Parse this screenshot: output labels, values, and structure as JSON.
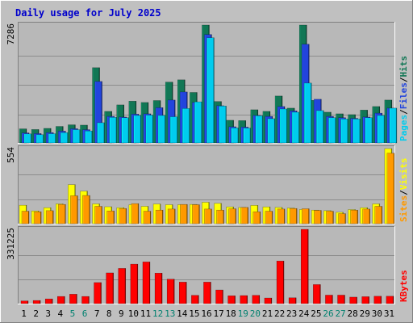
{
  "chart_data": {
    "type": "bar",
    "title": "Daily usage for July 2025",
    "categories": [
      "1",
      "2",
      "3",
      "4",
      "5",
      "6",
      "7",
      "8",
      "9",
      "10",
      "11",
      "12",
      "13",
      "14",
      "15",
      "16",
      "17",
      "18",
      "19",
      "20",
      "21",
      "22",
      "23",
      "24",
      "25",
      "26",
      "27",
      "28",
      "29",
      "30",
      "31"
    ],
    "weekend_days": [
      "5",
      "6",
      "12",
      "13",
      "19",
      "20",
      "26",
      "27"
    ],
    "panels": [
      {
        "name": "hits-files-pages",
        "ymax_label": "7286",
        "ylim": [
          0,
          7286
        ],
        "side_labels": [
          {
            "text": "Pages",
            "color": "#00ccee"
          },
          {
            "text": "/",
            "color": "#000000"
          },
          {
            "text": "Files",
            "color": "#2244dd"
          },
          {
            "text": "/",
            "color": "#000000"
          },
          {
            "text": "Hits",
            "color": "#117755"
          }
        ],
        "series": [
          {
            "name": "Hits",
            "color": "#117755",
            "values": [
              870,
              830,
              900,
              1020,
              1120,
              1100,
              4650,
              1950,
              2350,
              2580,
              2500,
              2620,
              3760,
              3900,
              3120,
              7286,
              2560,
              1400,
              1380,
              2050,
              1950,
              2900,
              2150,
              7286,
              2630,
              1900,
              1800,
              1750,
              2030,
              2250,
              2650
            ]
          },
          {
            "name": "Files",
            "color": "#2244dd",
            "values": [
              620,
              580,
              640,
              730,
              880,
              820,
              3800,
              1640,
              1600,
              1780,
              1800,
              2180,
              2650,
              3150,
              2500,
              6700,
              2300,
              1000,
              980,
              1700,
              1640,
              2250,
              1980,
              6100,
              2700,
              1640,
              1560,
              1520,
              1600,
              1840,
              2150
            ]
          },
          {
            "name": "Pages",
            "color": "#00ccee",
            "values": [
              560,
              510,
              570,
              640,
              820,
              740,
              1250,
              1580,
              1560,
              1700,
              1720,
              1700,
              1620,
              2130,
              2540,
              6500,
              2280,
              930,
              920,
              1680,
              1500,
              2100,
              1900,
              3700,
              2000,
              1560,
              1480,
              1480,
              1560,
              1700,
              2150
            ]
          }
        ]
      },
      {
        "name": "visits-sites",
        "ymax_label": "554",
        "ylim": [
          0,
          554
        ],
        "side_labels": [
          {
            "text": "Sites",
            "color": "#ff9900"
          },
          {
            "text": "/",
            "color": "#000000"
          },
          {
            "text": "Visits",
            "color": "#ffff00"
          }
        ],
        "series": [
          {
            "name": "Visits",
            "color": "#ffff00",
            "values": [
              136,
              94,
              118,
              146,
              288,
              240,
              146,
              125,
              118,
              140,
              128,
              145,
              140,
              140,
              142,
              158,
              150,
              124,
              120,
              135,
              124,
              120,
              115,
              104,
              100,
              96,
              84,
              104,
              118,
              146,
              554
            ]
          },
          {
            "name": "Sites",
            "color": "#ff9900",
            "values": [
              92,
              88,
              96,
              142,
              206,
              208,
              128,
              94,
              112,
              148,
              92,
              100,
              108,
              142,
              140,
              108,
              100,
              110,
              120,
              88,
              92,
              108,
              112,
              110,
              98,
              92,
              74,
              100,
              108,
              128,
              520
            ]
          }
        ]
      },
      {
        "name": "kbytes",
        "ymax_label": "331225",
        "ylim": [
          0,
          331225
        ],
        "side_labels": [
          {
            "text": "KBytes",
            "color": "#ff0000"
          }
        ],
        "series": [
          {
            "name": "KBytes",
            "color": "#ff0000",
            "values": [
              12000,
              14000,
              21000,
              32000,
              42000,
              32000,
              94000,
              137000,
              157000,
              176000,
              186000,
              136000,
              109000,
              96000,
              37000,
              96000,
              61000,
              35000,
              36000,
              37000,
              25000,
              190000,
              26000,
              331225,
              85000,
              38000,
              38000,
              29000,
              31000,
              33000,
              33000
            ]
          }
        ]
      }
    ]
  },
  "colors": {
    "frame_bg": "#c0c0c0",
    "plot_bg": "#b8b8b8",
    "title": "#0000cc",
    "weekday": "#000000",
    "weekend": "#00806f"
  }
}
